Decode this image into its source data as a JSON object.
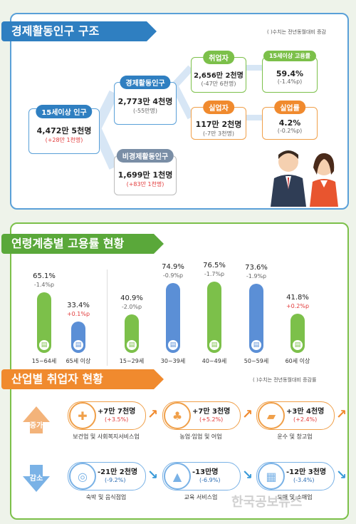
{
  "section1": {
    "title": "경제활동인구 구조",
    "note": "( )수치는 전년동월대비 증감",
    "population15": {
      "label": "15세이상 인구",
      "value": "4,472만 5천명",
      "change": "(+28만 1천명)"
    },
    "active": {
      "label": "경제활동인구",
      "value": "2,773만 4천명",
      "change": "(-55만명)"
    },
    "inactive": {
      "label": "비경제활동인구",
      "value": "1,699만 1천명",
      "change": "(+83만 1천명)"
    },
    "employed": {
      "label": "취업자",
      "value": "2,656만 2천명",
      "change": "(-47만 6천명)"
    },
    "employment_rate": {
      "label": "15세이상 고용률",
      "value": "59.4%",
      "change": "(-1.4%p)"
    },
    "unemployed": {
      "label": "실업자",
      "value": "117만 2천명",
      "change": "(-7만 3천명)"
    },
    "unemployment_rate": {
      "label": "실업률",
      "value": "4.2%",
      "change": "(-0.2%p)"
    }
  },
  "section2": {
    "title": "연령계층별 고용률 현황",
    "bars": [
      {
        "name": "15~64세",
        "value": "65.1%",
        "change": "-1.4%p",
        "rate": 65.1,
        "color": "#7cc04a",
        "change_color": "#666"
      },
      {
        "name": "65세 이상",
        "value": "33.4%",
        "change": "+0.1%p",
        "rate": 33.4,
        "color": "#5b8fd6",
        "change_color": "#e23b3b"
      },
      {
        "name": "15~29세",
        "value": "40.9%",
        "change": "-2.0%p",
        "rate": 40.9,
        "color": "#7cc04a",
        "change_color": "#666"
      },
      {
        "name": "30~39세",
        "value": "74.9%",
        "change": "-0.9%p",
        "rate": 74.9,
        "color": "#5b8fd6",
        "change_color": "#666"
      },
      {
        "name": "40~49세",
        "value": "76.5%",
        "change": "-1.7%p",
        "rate": 76.5,
        "color": "#7cc04a",
        "change_color": "#666"
      },
      {
        "name": "50~59세",
        "value": "73.6%",
        "change": "-1.9%p",
        "rate": 73.6,
        "color": "#5b8fd6",
        "change_color": "#666"
      },
      {
        "name": "60세 이상",
        "value": "41.8%",
        "change": "+0.2%p",
        "rate": 41.8,
        "color": "#7cc04a",
        "change_color": "#e23b3b"
      }
    ]
  },
  "section3": {
    "title": "산업별 취업자 현황",
    "note": "( )수치는 전년동월대비 증감률",
    "increase_label": "증가",
    "decrease_label": "감소",
    "increase": [
      {
        "name": "보건업 및 사회복지서비스업",
        "value": "+7만 7천명",
        "change": "(+3.5%)",
        "icon": "medical-kit-icon"
      },
      {
        "name": "농업·임업 및 어업",
        "value": "+7만 3천명",
        "change": "(+5.2%)",
        "icon": "wheat-icon"
      },
      {
        "name": "운수 및 창고업",
        "value": "+3만 4천명",
        "change": "(+2.4%)",
        "icon": "truck-icon"
      }
    ],
    "decrease": [
      {
        "name": "숙박 및 음식점업",
        "value": "-21만 2천명",
        "change": "(-9.2%)",
        "icon": "dining-icon"
      },
      {
        "name": "교육 서비스업",
        "value": "-13만명",
        "change": "(-6.9%)",
        "icon": "graduation-cap-icon"
      },
      {
        "name": "도매 및 소매업",
        "value": "-12만 3천명",
        "change": "(-3.4%)",
        "icon": "shopping-basket-icon"
      }
    ]
  },
  "watermark": "한국공보뉴스"
}
